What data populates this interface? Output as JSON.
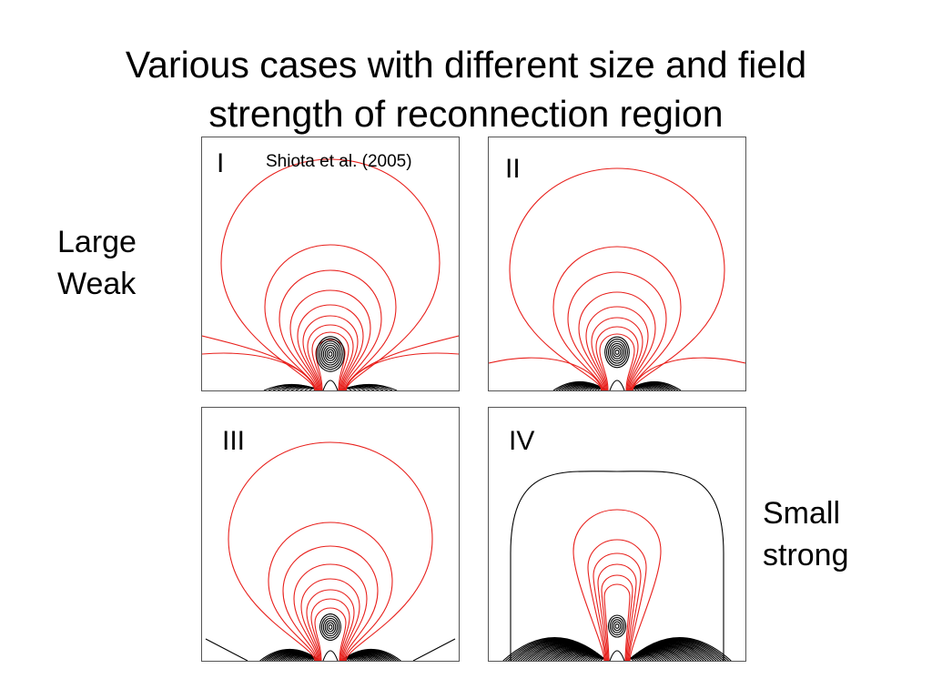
{
  "slide": {
    "title_line1": "Various cases with different size and field",
    "title_line2": "strength of reconnection region",
    "left_label_line1": "Large",
    "left_label_line2": "Weak",
    "right_label_line1": "Small",
    "right_label_line2": "strong"
  },
  "panels": [
    {
      "label": "I",
      "citation": "Shiota et al. (2005)"
    },
    {
      "label": "II"
    },
    {
      "label": "III"
    },
    {
      "label": "IV"
    }
  ],
  "colors": {
    "field_lines_open": "#e8201c",
    "field_lines_closed": "#000000"
  }
}
